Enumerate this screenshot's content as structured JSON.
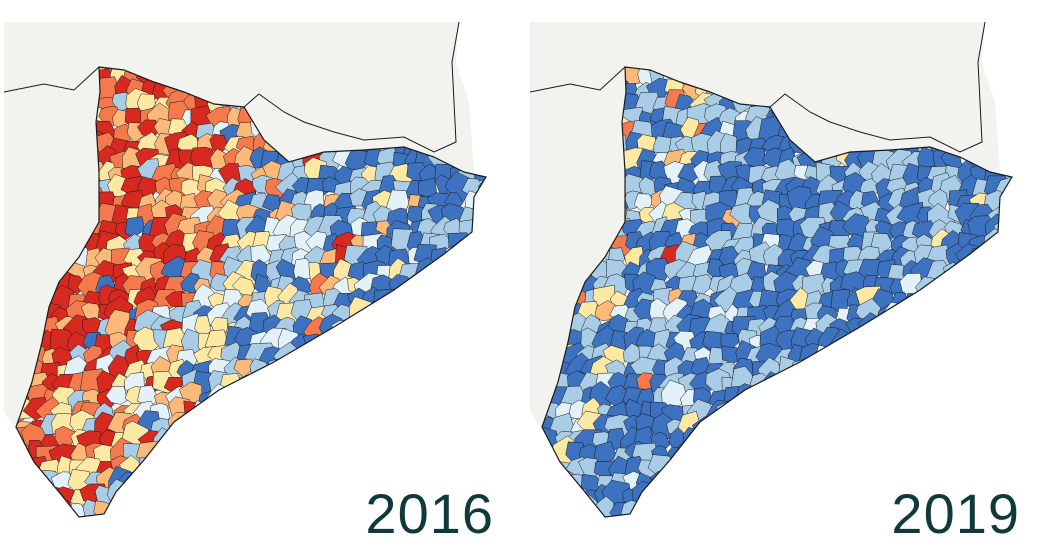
{
  "maps": [
    {
      "label": "2016",
      "palette": [
        "#d7291f",
        "#f47a4e",
        "#fdb97a",
        "#fde9a4",
        "#e2f2f8",
        "#a9cde6",
        "#3d72c0"
      ],
      "weights": [
        0.26,
        0.16,
        0.14,
        0.2,
        0.08,
        0.1,
        0.06
      ]
    },
    {
      "label": "2019",
      "palette": [
        "#d7291f",
        "#f47a4e",
        "#fdb97a",
        "#fde9a4",
        "#e2f2f8",
        "#a9cde6",
        "#3d72c0"
      ],
      "weights": [
        0.02,
        0.05,
        0.08,
        0.18,
        0.1,
        0.33,
        0.24
      ]
    }
  ],
  "colors": {
    "background": "#f2f2ef",
    "sea": "#ffffff",
    "border": "#1a1a1a",
    "label": "#0e3b3a"
  }
}
